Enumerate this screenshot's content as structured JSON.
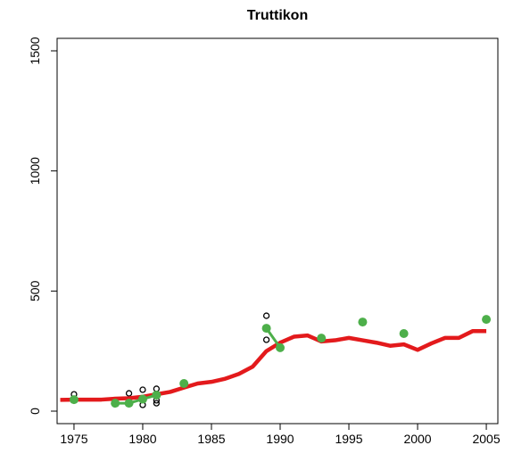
{
  "chart_data": {
    "type": "line",
    "title": "Truttikon",
    "xlim": [
      1973.77,
      2005.84
    ],
    "ylim": [
      -52,
      1552
    ],
    "xticks": [
      1975,
      1980,
      1985,
      1990,
      1995,
      2000,
      2005
    ],
    "yticks": [
      0,
      500,
      1000,
      1500
    ],
    "series": [
      {
        "mode": "points",
        "color": "#000000",
        "x": [
          1975,
          1975,
          1979,
          1979,
          1980,
          1980,
          1981,
          1981,
          1981,
          1989,
          1989
        ],
        "values": [
          70,
          45,
          74,
          30,
          89,
          26,
          93,
          45,
          33,
          397,
          297
        ]
      },
      {
        "mode": "line",
        "color": "#e31a1c",
        "x": [
          1974,
          1975,
          1976,
          1977,
          1978,
          1979,
          1980,
          1981,
          1982,
          1983,
          1984,
          1985,
          1986,
          1987,
          1988,
          1989,
          1990,
          1991,
          1992,
          1993,
          1994,
          1995,
          1996,
          1997,
          1998,
          1999,
          2000,
          2001,
          2002,
          2003,
          2004,
          2005
        ],
        "values": [
          47,
          48,
          48,
          48,
          52,
          54,
          60,
          70,
          80,
          98,
          115,
          122,
          135,
          155,
          185,
          250,
          285,
          310,
          315,
          290,
          295,
          305,
          295,
          285,
          272,
          278,
          255,
          282,
          305,
          305,
          333,
          333
        ]
      },
      {
        "mode": "linked-points",
        "color": "#4daf4a",
        "x": [
          1975,
          1978,
          1979,
          1980,
          1981,
          1983,
          1989,
          1990,
          1993,
          1996,
          1999,
          2005
        ],
        "values": [
          48,
          33,
          33,
          50,
          67,
          115,
          345,
          264,
          304,
          371,
          323,
          382
        ]
      }
    ]
  }
}
